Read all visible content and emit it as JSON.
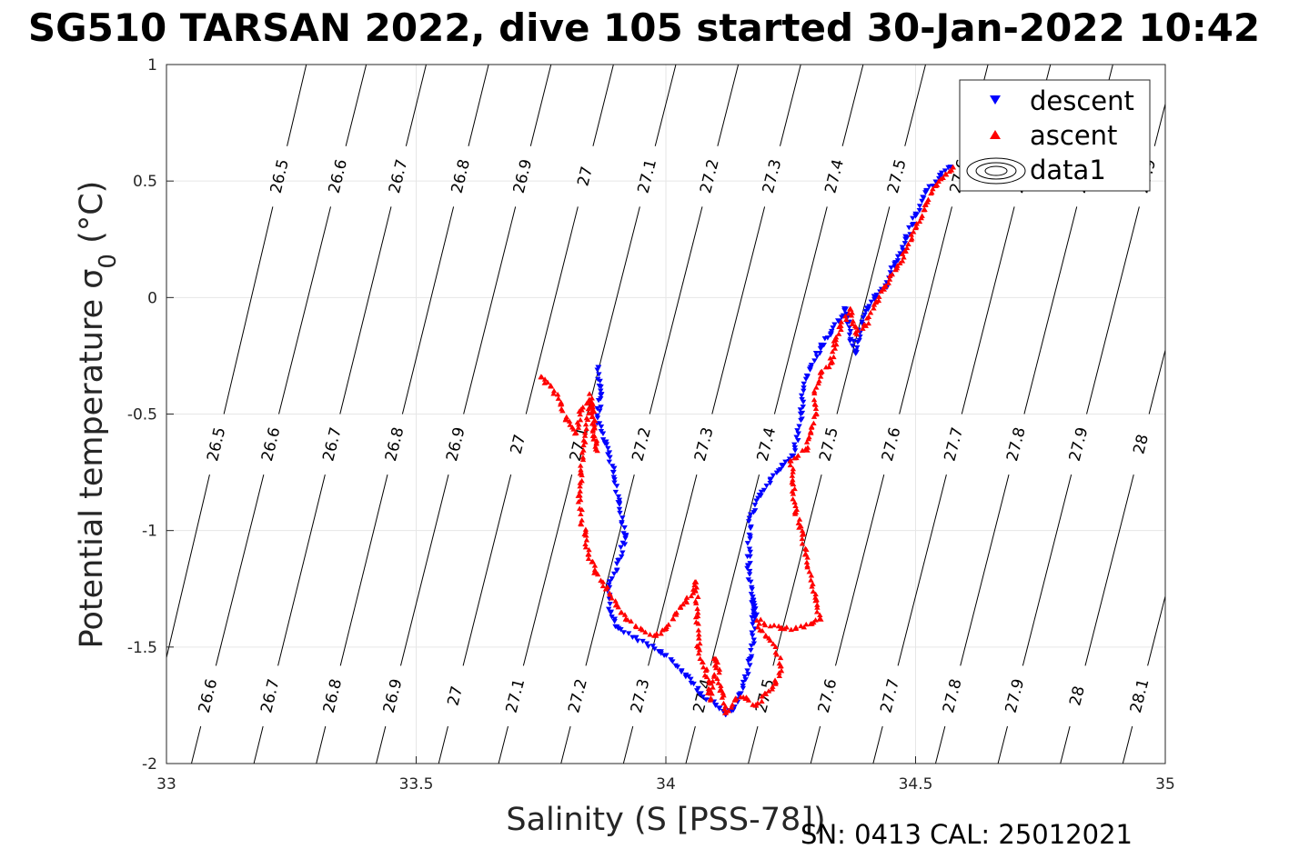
{
  "title": "SG510 TARSAN 2022, dive 105 started 30-Jan-2022 10:42",
  "footer": "SN: 0413  CAL: 25012021",
  "chart_data": {
    "type": "scatter",
    "title": "SG510 TARSAN 2022, dive 105 started 30-Jan-2022 10:42",
    "xlabel": "Salinity (S [PSS-78])",
    "ylabel": "Potential temperature σ0 (°C)",
    "xlim": [
      33,
      35
    ],
    "ylim": [
      -2,
      1
    ],
    "xticks": [
      "33",
      "33.5",
      "34",
      "34.5",
      "35"
    ],
    "yticks": [
      "-2",
      "-1.5",
      "-1",
      "-0.5",
      "0",
      "0.5",
      "1"
    ],
    "grid": true,
    "legend_position": "top-right",
    "legend": [
      "descent",
      "ascent",
      "data1"
    ],
    "colors": {
      "descent": "#0000ff",
      "ascent": "#ff0000",
      "contour": "#000000",
      "axis": "#262626",
      "grid": "#e6e6e6"
    },
    "isopycnals": {
      "levels": [
        "26.5",
        "26.6",
        "26.7",
        "26.8",
        "26.9",
        "27",
        "27.1",
        "27.2",
        "27.3",
        "27.4",
        "27.5",
        "27.6",
        "27.7",
        "27.8",
        "27.9",
        "28",
        "28.1"
      ],
      "salinity_at_min_temp": [
        32.95,
        33.05,
        33.175,
        33.3,
        33.42,
        33.545,
        33.665,
        33.79,
        33.915,
        34.04,
        34.165,
        34.29,
        34.415,
        34.54,
        34.665,
        34.79,
        34.915
      ],
      "salinity_at_max_temp": [
        33.28,
        33.4,
        33.52,
        33.645,
        33.77,
        33.895,
        34.02,
        34.145,
        34.27,
        34.395,
        34.52,
        34.645,
        34.77,
        34.895,
        35.02,
        35.145,
        35.27
      ]
    },
    "series": [
      {
        "name": "descent",
        "marker": "triangle-down",
        "polyline": [
          [
            33.865,
            -0.3
          ],
          [
            33.87,
            -0.42
          ],
          [
            33.862,
            -0.52
          ],
          [
            33.873,
            -0.57
          ],
          [
            33.88,
            -0.62
          ],
          [
            33.895,
            -0.75
          ],
          [
            33.905,
            -0.88
          ],
          [
            33.92,
            -1.02
          ],
          [
            33.905,
            -1.15
          ],
          [
            33.885,
            -1.25
          ],
          [
            33.89,
            -1.35
          ],
          [
            33.905,
            -1.42
          ],
          [
            33.94,
            -1.46
          ],
          [
            33.99,
            -1.52
          ],
          [
            34.04,
            -1.62
          ],
          [
            34.07,
            -1.7
          ],
          [
            34.1,
            -1.75
          ],
          [
            34.12,
            -1.79
          ],
          [
            34.135,
            -1.77
          ],
          [
            34.15,
            -1.7
          ],
          [
            34.17,
            -1.55
          ],
          [
            34.175,
            -1.45
          ],
          [
            34.175,
            -1.3
          ],
          [
            34.18,
            -1.38
          ],
          [
            34.165,
            -1.15
          ],
          [
            34.17,
            -0.95
          ],
          [
            34.19,
            -0.85
          ],
          [
            34.21,
            -0.78
          ],
          [
            34.235,
            -0.72
          ],
          [
            34.255,
            -0.68
          ],
          [
            34.265,
            -0.6
          ],
          [
            34.27,
            -0.5
          ],
          [
            34.275,
            -0.4
          ],
          [
            34.29,
            -0.3
          ],
          [
            34.31,
            -0.22
          ],
          [
            34.33,
            -0.16
          ],
          [
            34.345,
            -0.1
          ],
          [
            34.36,
            -0.05
          ],
          [
            34.37,
            -0.18
          ],
          [
            34.38,
            -0.24
          ],
          [
            34.39,
            -0.12
          ],
          [
            34.405,
            -0.05
          ],
          [
            34.42,
            0.0
          ],
          [
            34.44,
            0.05
          ],
          [
            34.46,
            0.15
          ],
          [
            34.48,
            0.25
          ],
          [
            34.5,
            0.35
          ],
          [
            34.52,
            0.45
          ],
          [
            34.55,
            0.52
          ],
          [
            34.57,
            0.56
          ]
        ],
        "x": [
          33.865,
          33.87,
          33.88,
          33.895,
          33.905,
          33.92,
          33.89,
          33.905,
          33.94,
          33.99,
          34.04,
          34.07,
          34.1,
          34.12,
          34.135,
          34.15,
          34.17,
          34.175,
          34.165,
          34.19,
          34.21,
          34.235,
          34.255,
          34.27,
          34.29,
          34.31,
          34.33,
          34.345,
          34.36,
          34.37,
          34.38,
          34.405,
          34.42,
          34.44,
          34.46,
          34.48,
          34.5,
          34.52,
          34.55,
          34.57
        ],
        "y": [
          -0.3,
          -0.42,
          -0.62,
          -0.75,
          -0.88,
          -1.02,
          -1.35,
          -1.42,
          -1.46,
          -1.52,
          -1.62,
          -1.7,
          -1.75,
          -1.79,
          -1.77,
          -1.7,
          -1.55,
          -1.3,
          -1.15,
          -0.85,
          -0.78,
          -0.72,
          -0.68,
          -0.5,
          -0.3,
          -0.22,
          -0.16,
          -0.1,
          -0.05,
          -0.18,
          -0.24,
          -0.05,
          0.0,
          0.05,
          0.15,
          0.25,
          0.35,
          0.45,
          0.52,
          0.56
        ]
      },
      {
        "name": "ascent",
        "marker": "triangle-up",
        "polyline": [
          [
            33.75,
            -0.34
          ],
          [
            33.77,
            -0.38
          ],
          [
            33.79,
            -0.45
          ],
          [
            33.8,
            -0.52
          ],
          [
            33.82,
            -0.58
          ],
          [
            33.83,
            -0.48
          ],
          [
            33.85,
            -0.45
          ],
          [
            33.86,
            -0.65
          ],
          [
            33.85,
            -0.42
          ],
          [
            33.83,
            -0.75
          ],
          [
            33.825,
            -0.85
          ],
          [
            33.83,
            -0.95
          ],
          [
            33.84,
            -1.02
          ],
          [
            33.845,
            -1.1
          ],
          [
            33.86,
            -1.18
          ],
          [
            33.88,
            -1.25
          ],
          [
            33.9,
            -1.32
          ],
          [
            33.92,
            -1.38
          ],
          [
            33.95,
            -1.42
          ],
          [
            33.98,
            -1.45
          ],
          [
            34.0,
            -1.42
          ],
          [
            34.02,
            -1.36
          ],
          [
            34.04,
            -1.3
          ],
          [
            34.05,
            -1.28
          ],
          [
            34.06,
            -1.22
          ],
          [
            34.065,
            -1.5
          ],
          [
            34.08,
            -1.6
          ],
          [
            34.09,
            -1.72
          ],
          [
            34.1,
            -1.55
          ],
          [
            34.11,
            -1.68
          ],
          [
            34.12,
            -1.78
          ],
          [
            34.14,
            -1.72
          ],
          [
            34.16,
            -1.72
          ],
          [
            34.18,
            -1.75
          ],
          [
            34.2,
            -1.7
          ],
          [
            34.22,
            -1.65
          ],
          [
            34.23,
            -1.58
          ],
          [
            34.22,
            -1.5
          ],
          [
            34.2,
            -1.45
          ],
          [
            34.18,
            -1.38
          ],
          [
            34.2,
            -1.4
          ],
          [
            34.23,
            -1.42
          ],
          [
            34.26,
            -1.42
          ],
          [
            34.29,
            -1.4
          ],
          [
            34.31,
            -1.38
          ],
          [
            34.3,
            -1.3
          ],
          [
            34.28,
            -1.1
          ],
          [
            34.27,
            -0.98
          ],
          [
            34.26,
            -0.92
          ],
          [
            34.255,
            -0.8
          ],
          [
            34.25,
            -0.7
          ],
          [
            34.26,
            -0.68
          ],
          [
            34.28,
            -0.65
          ],
          [
            34.29,
            -0.58
          ],
          [
            34.3,
            -0.5
          ],
          [
            34.3,
            -0.4
          ],
          [
            34.31,
            -0.32
          ],
          [
            34.33,
            -0.28
          ],
          [
            34.34,
            -0.18
          ],
          [
            34.35,
            -0.12
          ],
          [
            34.37,
            -0.05
          ],
          [
            34.38,
            -0.15
          ],
          [
            34.4,
            -0.12
          ],
          [
            34.42,
            -0.02
          ],
          [
            34.44,
            0.05
          ],
          [
            34.46,
            0.12
          ],
          [
            34.48,
            0.2
          ],
          [
            34.5,
            0.3
          ],
          [
            34.52,
            0.4
          ],
          [
            34.54,
            0.48
          ],
          [
            34.56,
            0.53
          ],
          [
            34.575,
            0.56
          ]
        ],
        "x": [
          33.75,
          33.77,
          33.79,
          33.8,
          33.82,
          33.83,
          33.85,
          33.86,
          33.83,
          33.825,
          33.84,
          33.845,
          33.86,
          33.88,
          33.9,
          33.92,
          33.95,
          33.98,
          34.0,
          34.02,
          34.04,
          34.06,
          34.065,
          34.08,
          34.09,
          34.1,
          34.11,
          34.12,
          34.14,
          34.16,
          34.18,
          34.2,
          34.22,
          34.23,
          34.2,
          34.23,
          34.26,
          34.29,
          34.31,
          34.3,
          34.28,
          34.27,
          34.26,
          34.255,
          34.25,
          34.28,
          34.29,
          34.3,
          34.31,
          34.33,
          34.34,
          34.35,
          34.37,
          34.38,
          34.4,
          34.42,
          34.44,
          34.46,
          34.48,
          34.5,
          34.52,
          34.54,
          34.56,
          34.575
        ],
        "y": [
          -0.34,
          -0.38,
          -0.45,
          -0.52,
          -0.58,
          -0.48,
          -0.45,
          -0.65,
          -0.75,
          -0.85,
          -1.02,
          -1.1,
          -1.18,
          -1.25,
          -1.32,
          -1.38,
          -1.42,
          -1.45,
          -1.42,
          -1.36,
          -1.3,
          -1.22,
          -1.5,
          -1.6,
          -1.72,
          -1.55,
          -1.68,
          -1.78,
          -1.72,
          -1.72,
          -1.75,
          -1.7,
          -1.65,
          -1.58,
          -1.45,
          -1.42,
          -1.42,
          -1.4,
          -1.38,
          -1.3,
          -1.1,
          -0.98,
          -0.92,
          -0.8,
          -0.7,
          -0.65,
          -0.58,
          -0.5,
          -0.32,
          -0.28,
          -0.18,
          -0.12,
          -0.05,
          -0.15,
          -0.12,
          -0.02,
          0.05,
          0.12,
          0.2,
          0.3,
          0.4,
          0.48,
          0.53,
          0.56
        ]
      }
    ]
  }
}
